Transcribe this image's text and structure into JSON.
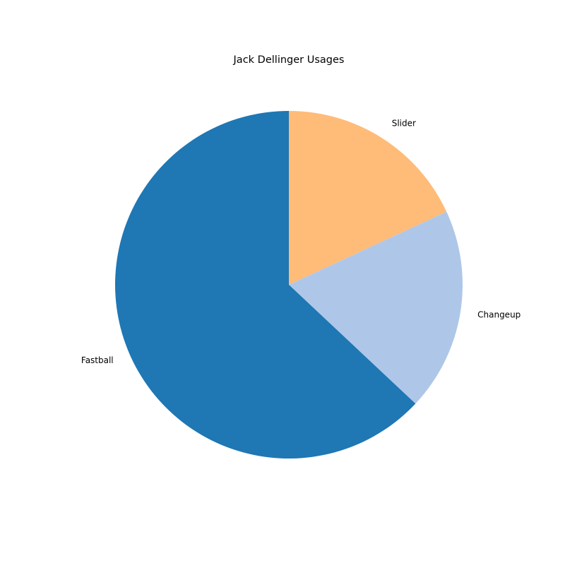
{
  "chart_data": {
    "type": "pie",
    "title": "Jack Dellinger Usages",
    "labels": [
      "Slider",
      "Changeup",
      "Fastball"
    ],
    "values": [
      18.1,
      18.9,
      63.0
    ],
    "colors": [
      "#ffbb78",
      "#aec7e8",
      "#1f77b4"
    ],
    "start_angle_deg": 90,
    "direction": "clockwise",
    "legend": "none"
  }
}
